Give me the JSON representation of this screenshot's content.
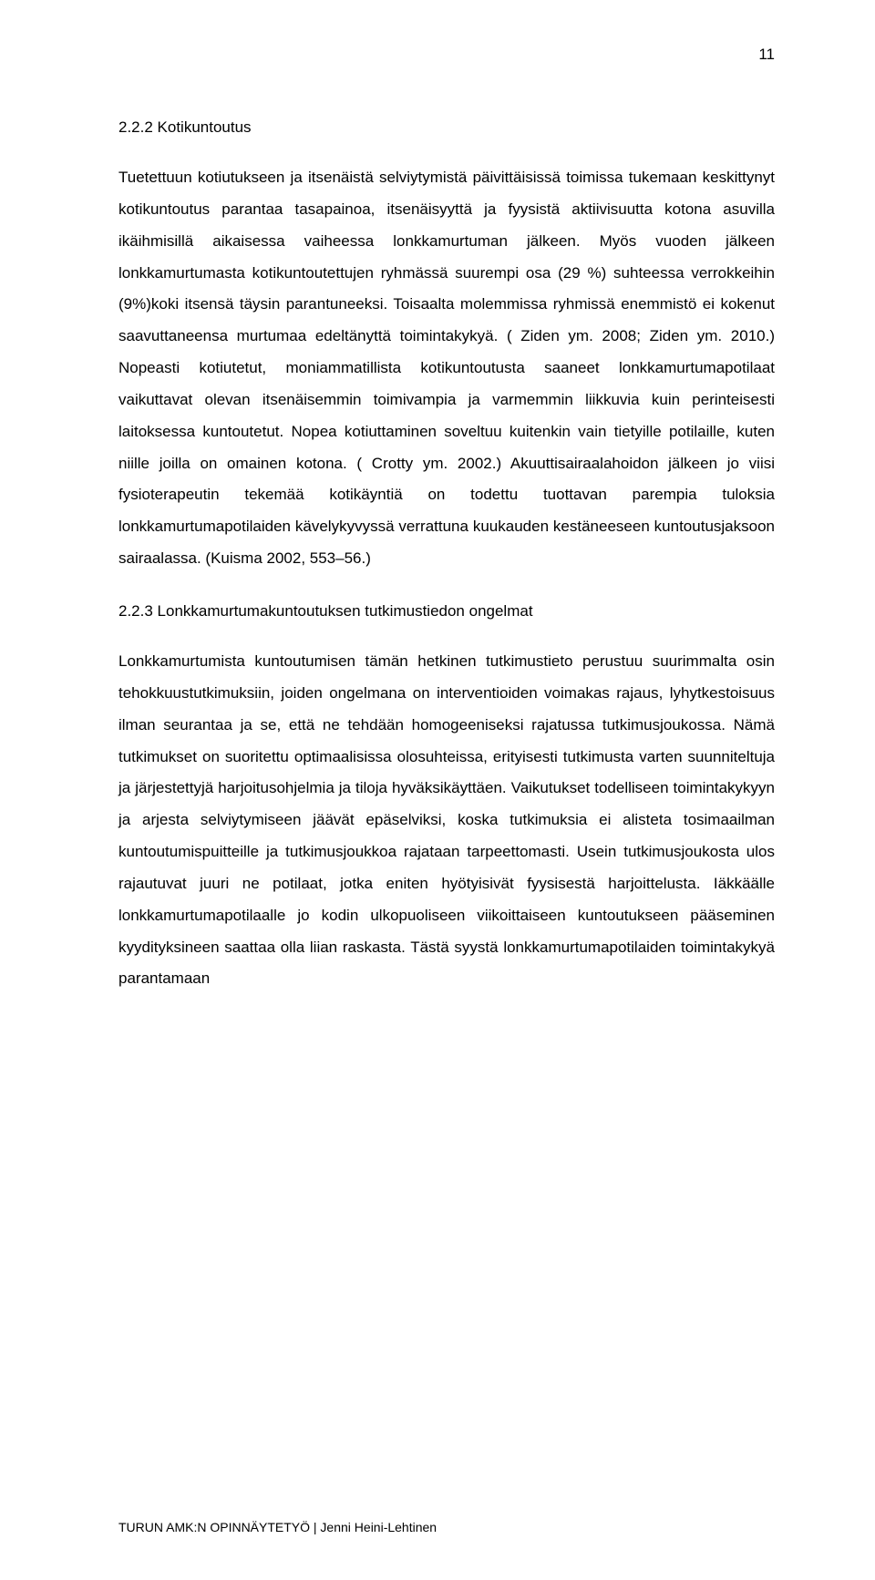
{
  "page_number": "11",
  "heading1": "2.2.2 Kotikuntoutus",
  "paragraph1": "Tuetettuun kotiutukseen ja itsenäistä selviytymistä päivittäisissä toimissa tukemaan keskittynyt kotikuntoutus parantaa tasapainoa, itsenäisyyttä ja fyysistä aktiivisuutta kotona asuvilla ikäihmisillä aikaisessa vaiheessa lonkkamurtuman jälkeen. Myös vuoden jälkeen lonkkamurtumasta kotikuntoutettujen ryhmässä suurempi osa (29 %) suhteessa verrokkeihin (9%)koki itsensä täysin parantuneeksi. Toisaalta molemmissa ryhmissä enemmistö ei kokenut saavuttaneensa murtumaa edeltänyttä toimintakykyä. ( Ziden ym. 2008; Ziden ym. 2010.) Nopeasti kotiutetut, moniammatillista kotikuntoutusta saaneet lonkkamurtumapotilaat vaikuttavat olevan itsenäisemmin toimivampia ja varmemmin liikkuvia kuin perinteisesti laitoksessa kuntoutetut. Nopea kotiuttaminen soveltuu kuitenkin vain tietyille potilaille, kuten niille joilla on omainen kotona. ( Crotty ym. 2002.) Akuuttisairaalahoidon jälkeen jo viisi fysioterapeutin tekemää kotikäyntiä on todettu tuottavan parempia tuloksia lonkkamurtumapotilaiden kävelykyvyssä verrattuna kuukauden kestäneeseen kuntoutusjaksoon sairaalassa. (Kuisma 2002, 553–56.)",
  "heading2": "2.2.3 Lonkkamurtumakuntoutuksen tutkimustiedon ongelmat",
  "paragraph2": "Lonkkamurtumista kuntoutumisen tämän hetkinen tutkimustieto perustuu suurimmalta osin tehokkuustutkimuksiin, joiden ongelmana on interventioiden voimakas rajaus, lyhytkestoisuus ilman seurantaa ja se, että ne tehdään homogeeniseksi rajatussa tutkimusjoukossa. Nämä tutkimukset on suoritettu optimaalisissa olosuhteissa, erityisesti tutkimusta varten suunniteltuja ja järjestettyjä harjoitusohjelmia ja tiloja hyväksikäyttäen. Vaikutukset todelliseen toimintakykyyn ja arjesta selviytymiseen jäävät epäselviksi, koska tutkimuksia ei alisteta tosimaailman kuntoutumispuitteille ja tutkimusjoukkoa rajataan tarpeettomasti. Usein tutkimusjoukosta ulos rajautuvat juuri ne potilaat, jotka eniten hyötyisivät fyysisestä harjoittelusta. Iäkkäälle lonkkamurtumapotilaalle jo kodin ulkopuoliseen viikoittaiseen kuntoutukseen pääseminen kyydityksineen saattaa olla liian raskasta. Tästä syystä lonkkamurtumapotilaiden toimintakykyä parantamaan",
  "footer": "TURUN AMK:N OPINNÄYTETYÖ | Jenni Heini-Lehtinen"
}
